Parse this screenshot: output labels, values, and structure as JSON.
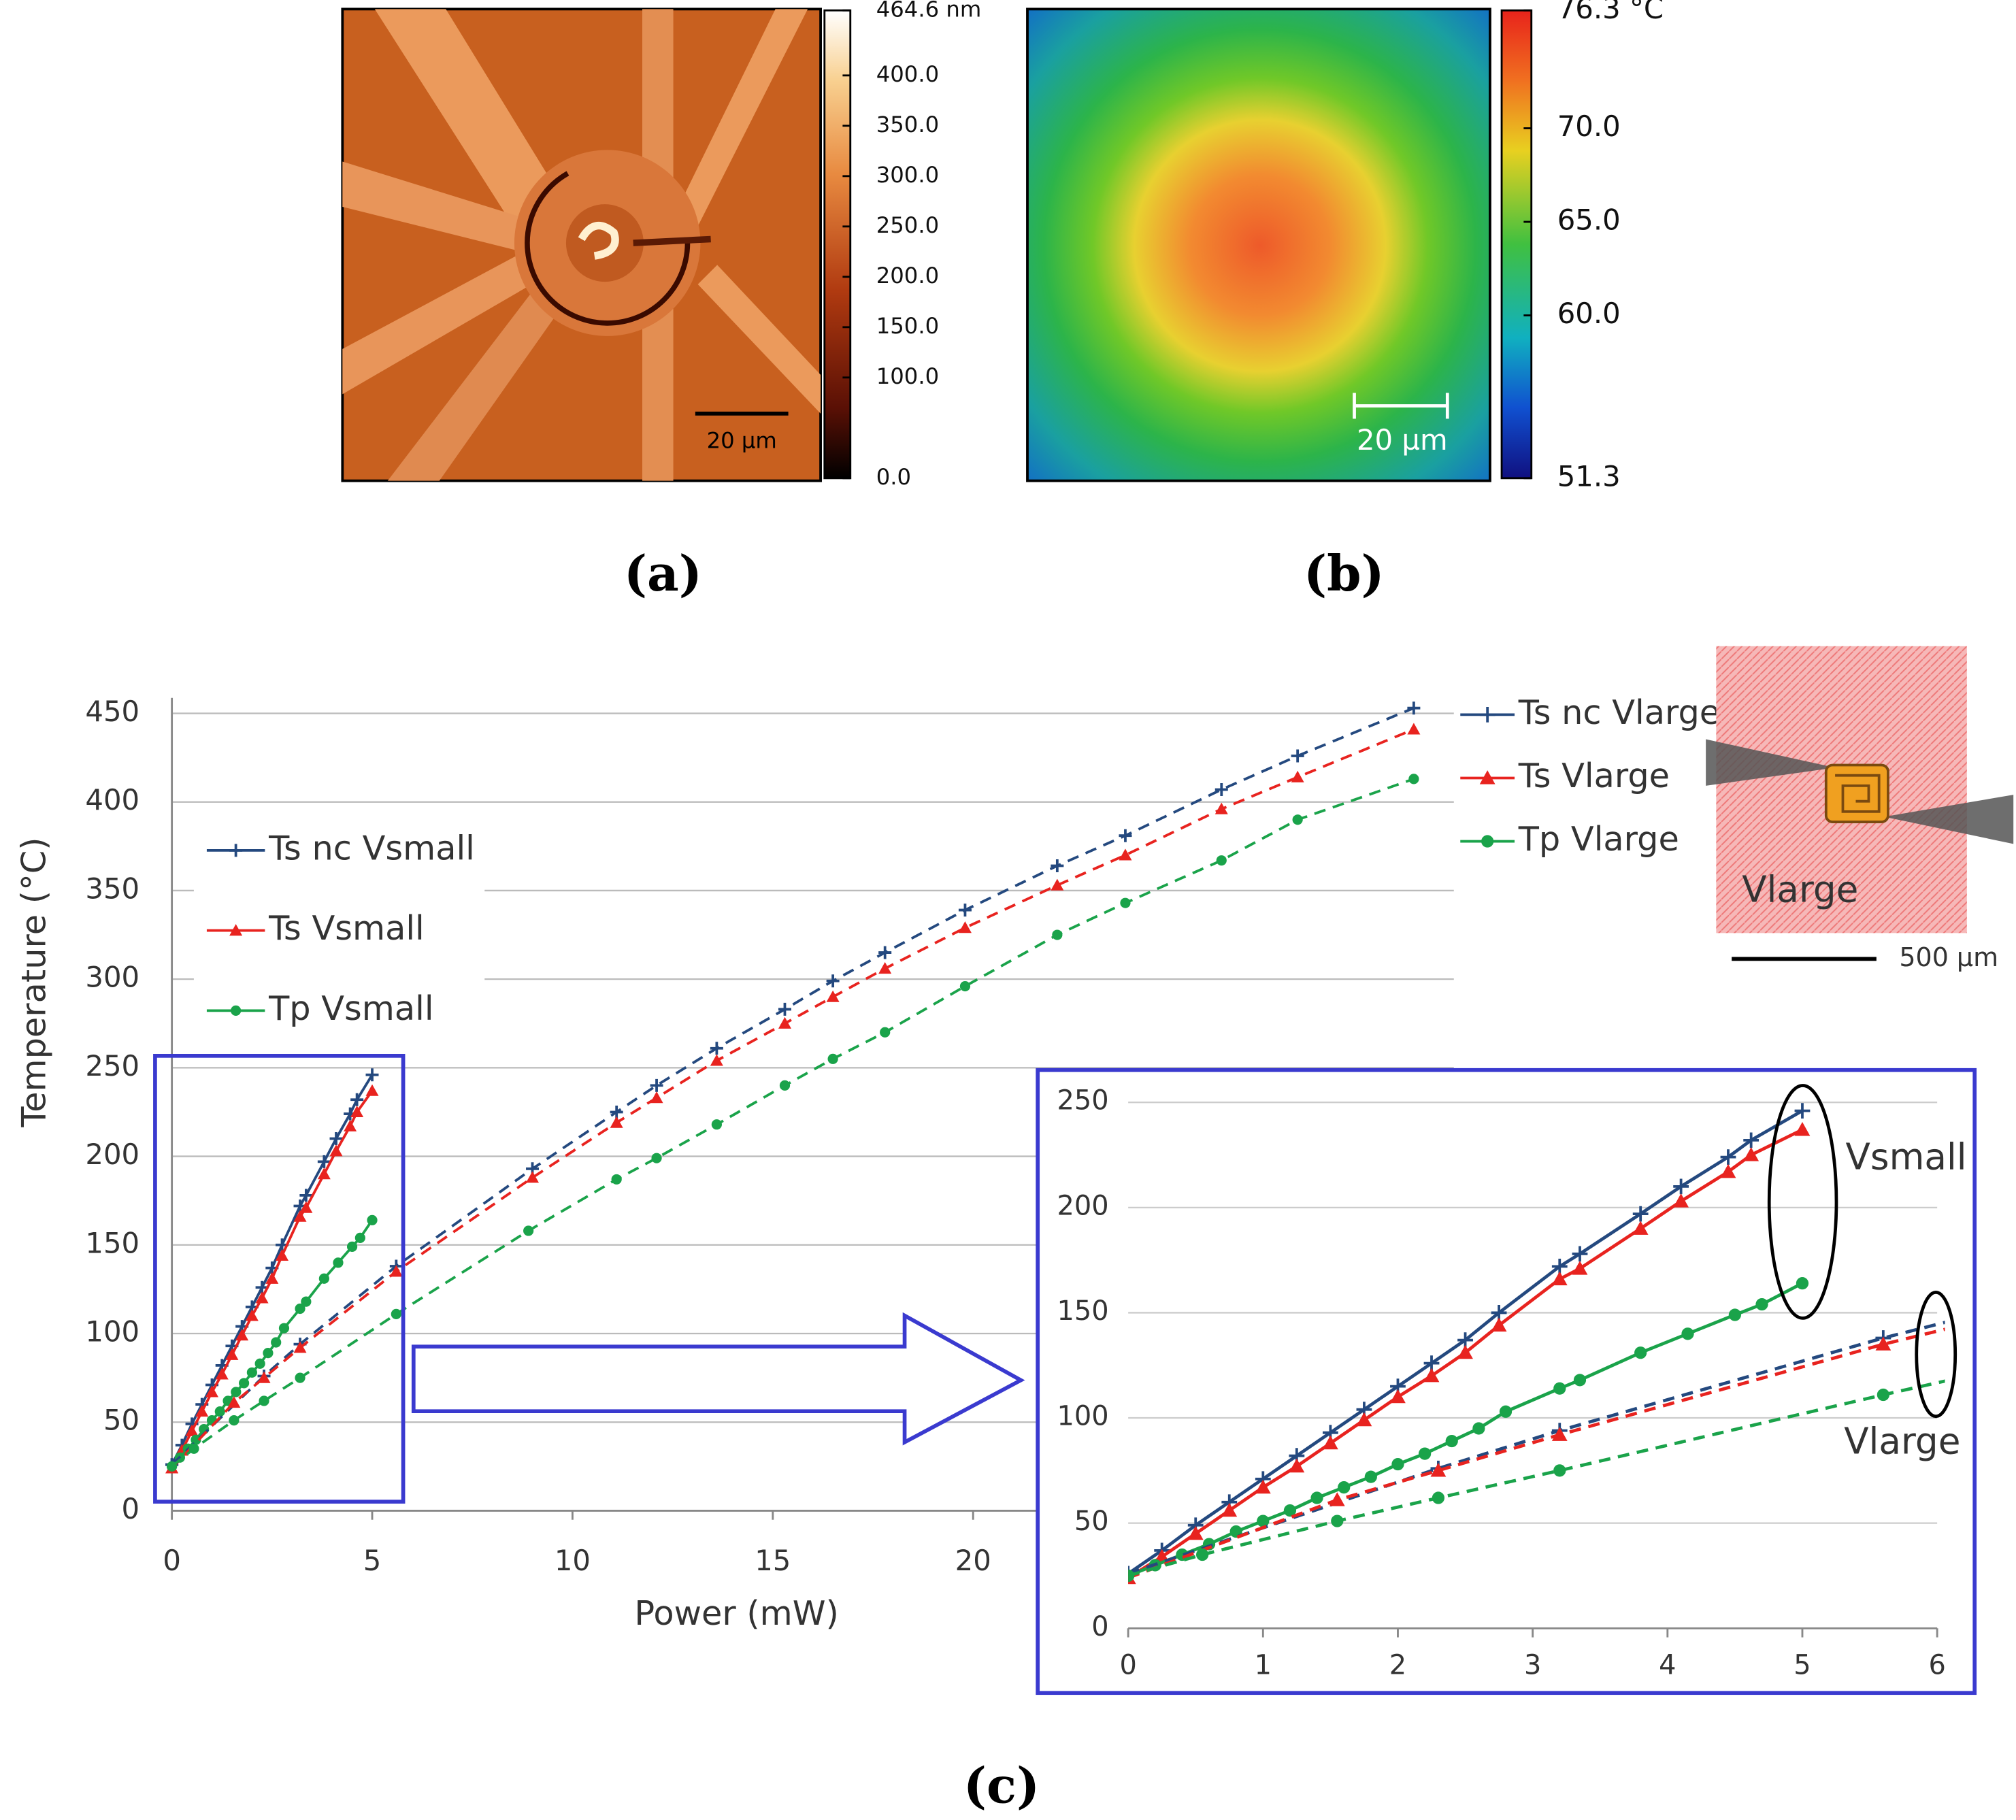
{
  "chart_data": [
    {
      "type": "heatmap",
      "panel_label": "(a)",
      "scale_bar": "20 µm",
      "clim": [
        0,
        464.6
      ],
      "cticks": [
        {
          "value": 464.6,
          "label": "464.6 nm"
        },
        {
          "value": 400,
          "label": "400.0"
        },
        {
          "value": 350,
          "label": "350.0"
        },
        {
          "value": 300,
          "label": "300.0"
        },
        {
          "value": 250,
          "label": "250.0"
        },
        {
          "value": 200,
          "label": "200.0"
        },
        {
          "value": 150,
          "label": "150.0"
        },
        {
          "value": 100,
          "label": "100.0"
        },
        {
          "value": 0,
          "label": "0.0"
        }
      ]
    },
    {
      "type": "heatmap",
      "panel_label": "(b)",
      "scale_bar": "20 µm",
      "clim": [
        51.3,
        76.3
      ],
      "cticks": [
        {
          "value": 76.3,
          "label": "76.3 °C"
        },
        {
          "value": 70,
          "label": "70.0"
        },
        {
          "value": 65,
          "label": "65.0"
        },
        {
          "value": 60,
          "label": "60.0"
        },
        51.3
      ]
    },
    {
      "type": "line",
      "panel_label": "(c)",
      "xlabel": "Power (mW)",
      "ylabel": "Temperature (°C)",
      "xlim": [
        0,
        32
      ],
      "ylim": [
        0,
        450
      ],
      "xticks": [
        0,
        5,
        10,
        15,
        20
      ],
      "yticks": [
        0,
        50,
        100,
        150,
        200,
        250,
        300,
        350,
        400,
        450
      ],
      "grid": true,
      "inset_image": {
        "label": "Vlarge",
        "scale_bar": "500 µm"
      },
      "series": [
        {
          "name": "Ts nc Vsmall",
          "color": "#24497f",
          "marker": "plus",
          "style": "solid",
          "x": [
            0,
            0.25,
            0.5,
            0.75,
            1,
            1.25,
            1.5,
            1.75,
            2,
            2.25,
            2.5,
            2.75,
            3.2,
            3.35,
            3.8,
            4.1,
            4.45,
            4.62,
            5
          ],
          "values": [
            26,
            37,
            49,
            60,
            71,
            82,
            93,
            104,
            115,
            126,
            137,
            150,
            172,
            178,
            197,
            210,
            224,
            232,
            246
          ]
        },
        {
          "name": "Ts Vsmall",
          "color": "#e8231f",
          "marker": "triangle",
          "style": "solid",
          "x": [
            0,
            0.25,
            0.5,
            0.75,
            1,
            1.25,
            1.5,
            1.75,
            2,
            2.25,
            2.5,
            2.75,
            3.2,
            3.35,
            3.8,
            4.1,
            4.45,
            4.62,
            5
          ],
          "values": [
            24,
            34,
            45,
            56,
            67,
            77,
            88,
            99,
            110,
            120,
            131,
            144,
            166,
            171,
            190,
            203,
            217,
            225,
            237
          ]
        },
        {
          "name": "Tp Vsmall",
          "color": "#1aa34a",
          "marker": "circle",
          "style": "solid",
          "x": [
            0,
            0.2,
            0.4,
            0.6,
            0.8,
            1,
            1.2,
            1.4,
            1.6,
            1.8,
            2,
            2.2,
            2.4,
            2.6,
            2.8,
            3.2,
            3.35,
            3.8,
            4.15,
            4.5,
            4.7,
            5
          ],
          "values": [
            25,
            30,
            35,
            40,
            46,
            51,
            56,
            62,
            67,
            72,
            78,
            83,
            89,
            95,
            103,
            114,
            118,
            131,
            140,
            149,
            154,
            164
          ]
        },
        {
          "name": "Ts nc Vlarge",
          "color": "#24497f",
          "marker": "plus",
          "style": "dashed",
          "x": [
            0,
            2.3,
            3.2,
            5.6,
            9,
            11.1,
            12.1,
            13.6,
            15.3,
            16.5,
            17.8,
            19.8,
            22.1,
            23.8,
            26.2,
            28.1,
            31
          ],
          "values": [
            26,
            76,
            94,
            138,
            193,
            225,
            240,
            261,
            283,
            299,
            315,
            339,
            364,
            381,
            407,
            426,
            453
          ]
        },
        {
          "name": "Ts Vlarge",
          "color": "#e8231f",
          "marker": "triangle",
          "style": "dashed",
          "x": [
            0,
            1.55,
            2.3,
            3.2,
            5.6,
            9,
            11.1,
            12.1,
            13.6,
            15.3,
            16.5,
            17.8,
            19.8,
            22.1,
            23.8,
            26.2,
            28.1,
            31
          ],
          "values": [
            24,
            61,
            75,
            92,
            135,
            188,
            219,
            233,
            254,
            275,
            290,
            306,
            329,
            353,
            370,
            396,
            414,
            441
          ]
        },
        {
          "name": "Tp Vlarge",
          "color": "#1aa34a",
          "marker": "circle",
          "style": "dashed",
          "x": [
            0,
            0.55,
            1.55,
            2.3,
            3.2,
            5.6,
            8.9,
            11.1,
            12.1,
            13.6,
            15.3,
            16.5,
            17.8,
            19.8,
            22.1,
            23.8,
            26.2,
            28.1,
            31
          ],
          "values": [
            25,
            35,
            51,
            62,
            75,
            111,
            158,
            187,
            199,
            218,
            240,
            255,
            270,
            296,
            325,
            343,
            367,
            390,
            413
          ]
        }
      ]
    },
    {
      "type": "line",
      "xlim": [
        0,
        6
      ],
      "ylim": [
        0,
        250
      ],
      "xticks": [
        0,
        1,
        2,
        3,
        4,
        5,
        6
      ],
      "yticks": [
        0,
        50,
        100,
        150,
        200,
        250
      ],
      "grid": true,
      "annotations": [
        "Vsmall",
        "Vlarge"
      ]
    }
  ]
}
